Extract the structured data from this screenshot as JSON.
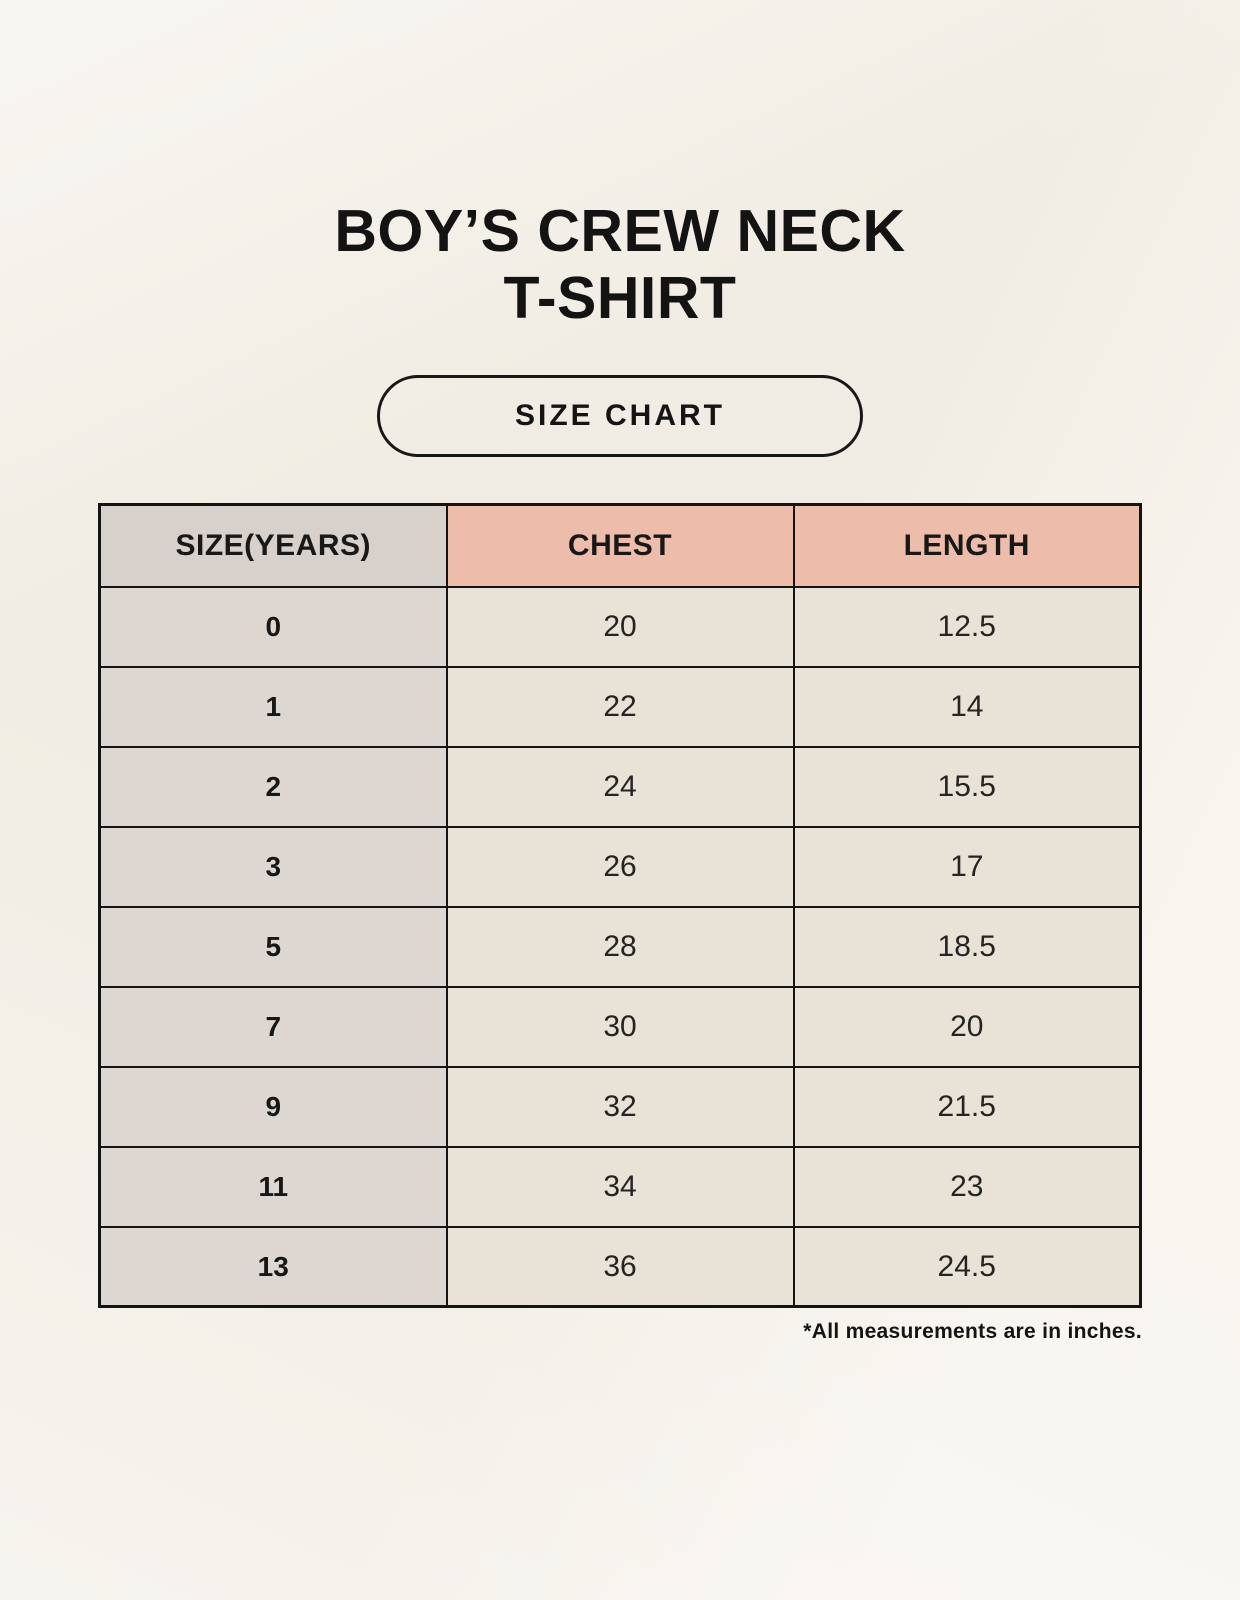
{
  "page": {
    "title_line1": "BOY’S CREW NECK",
    "title_line2": "T-SHIRT",
    "badge_label": "SIZE CHART",
    "footnote": "*All measurements are in inches."
  },
  "table": {
    "headers": [
      "SIZE(YEARS)",
      "CHEST",
      "LENGTH"
    ],
    "rows": [
      [
        "0",
        "20",
        "12.5"
      ],
      [
        "1",
        "22",
        "14"
      ],
      [
        "2",
        "24",
        "15.5"
      ],
      [
        "3",
        "26",
        "17"
      ],
      [
        "5",
        "28",
        "18.5"
      ],
      [
        "7",
        "30",
        "20"
      ],
      [
        "9",
        "32",
        "21.5"
      ],
      [
        "11",
        "34",
        "23"
      ],
      [
        "13",
        "36",
        "24.5"
      ]
    ]
  },
  "chart_data": {
    "type": "table",
    "title": "BOY’S CREW NECK T-SHIRT — SIZE CHART",
    "columns": [
      "SIZE(YEARS)",
      "CHEST",
      "LENGTH"
    ],
    "units": "inches",
    "rows": [
      {
        "size_years": 0,
        "chest": 20,
        "length": 12.5
      },
      {
        "size_years": 1,
        "chest": 22,
        "length": 14
      },
      {
        "size_years": 2,
        "chest": 24,
        "length": 15.5
      },
      {
        "size_years": 3,
        "chest": 26,
        "length": 17
      },
      {
        "size_years": 5,
        "chest": 28,
        "length": 18.5
      },
      {
        "size_years": 7,
        "chest": 30,
        "length": 20
      },
      {
        "size_years": 9,
        "chest": 32,
        "length": 21.5
      },
      {
        "size_years": 11,
        "chest": 34,
        "length": 23
      },
      {
        "size_years": 13,
        "chest": 36,
        "length": 24.5
      }
    ],
    "footnote": "*All measurements are in inches."
  },
  "colors": {
    "page_background": "#f5f1e9",
    "header_accent": "#edbcab",
    "size_column": "#ded6d1",
    "size_header": "#d7d0cb",
    "data_cell": "#e9e2d6",
    "table_border": "#141414",
    "text": "#161616"
  }
}
